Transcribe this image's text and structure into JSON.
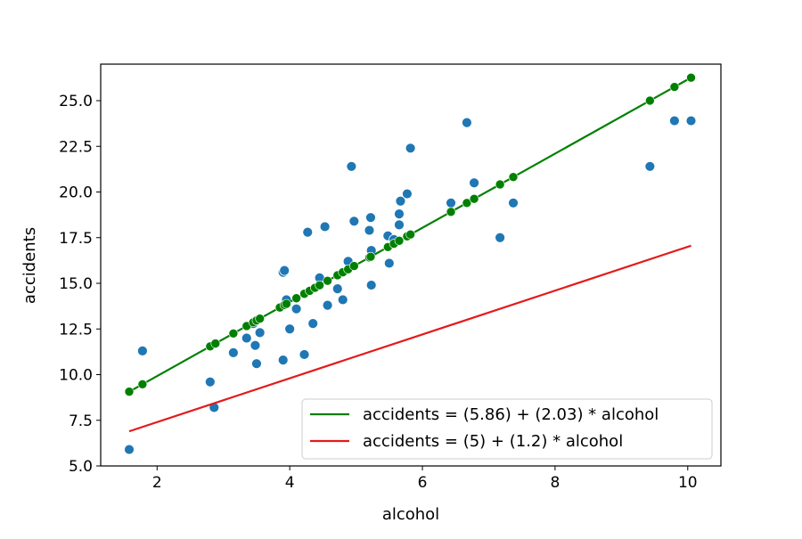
{
  "chart_data": {
    "type": "scatter",
    "title": "",
    "xlabel": "alcohol",
    "ylabel": "accidents",
    "xlim": [
      1.15,
      10.5
    ],
    "ylim": [
      5.0,
      27.0
    ],
    "x_ticks": [
      2,
      4,
      6,
      8,
      10
    ],
    "x_tick_labels": [
      "2",
      "4",
      "6",
      "8",
      "10"
    ],
    "y_ticks": [
      5.0,
      7.5,
      10.0,
      12.5,
      15.0,
      17.5,
      20.0,
      22.5,
      25.0
    ],
    "y_tick_labels": [
      "5.0",
      "7.5",
      "10.0",
      "12.5",
      "15.0",
      "17.5",
      "20.0",
      "22.5",
      "25.0"
    ],
    "grid": false,
    "legend_position": "lower right",
    "colors": {
      "observed": "#1f77b4",
      "fitted": "#008000",
      "guess": "#e31a1c",
      "axes": "#000000"
    },
    "series": [
      {
        "kind": "scatter",
        "color": "#1f77b4",
        "points": [
          [
            1.58,
            5.9
          ],
          [
            1.78,
            11.3
          ],
          [
            2.8,
            9.6
          ],
          [
            2.86,
            8.2
          ],
          [
            2.88,
            11.7
          ],
          [
            3.15,
            11.2
          ],
          [
            3.35,
            12.0
          ],
          [
            3.45,
            12.8
          ],
          [
            3.48,
            11.6
          ],
          [
            3.5,
            10.6
          ],
          [
            3.55,
            12.3
          ],
          [
            3.9,
            15.6
          ],
          [
            3.92,
            15.7
          ],
          [
            3.9,
            10.8
          ],
          [
            3.95,
            14.1
          ],
          [
            4.0,
            12.5
          ],
          [
            4.1,
            13.6
          ],
          [
            4.22,
            11.1
          ],
          [
            4.27,
            17.8
          ],
          [
            4.35,
            12.8
          ],
          [
            4.45,
            15.3
          ],
          [
            4.53,
            18.1
          ],
          [
            4.57,
            13.8
          ],
          [
            4.72,
            14.7
          ],
          [
            4.8,
            14.1
          ],
          [
            4.88,
            16.2
          ],
          [
            4.93,
            21.4
          ],
          [
            4.97,
            18.4
          ],
          [
            5.2,
            17.9
          ],
          [
            5.22,
            18.6
          ],
          [
            5.23,
            16.8
          ],
          [
            5.23,
            14.9
          ],
          [
            5.48,
            17.6
          ],
          [
            5.5,
            16.1
          ],
          [
            5.57,
            17.4
          ],
          [
            5.65,
            18.8
          ],
          [
            5.65,
            18.2
          ],
          [
            5.67,
            19.5
          ],
          [
            5.77,
            19.9
          ],
          [
            5.82,
            22.4
          ],
          [
            6.43,
            19.4
          ],
          [
            6.67,
            23.8
          ],
          [
            6.78,
            20.5
          ],
          [
            7.17,
            17.5
          ],
          [
            7.37,
            19.4
          ],
          [
            9.43,
            21.4
          ],
          [
            9.8,
            23.9
          ],
          [
            10.05,
            23.9
          ]
        ]
      },
      {
        "kind": "line-with-markers",
        "name": "accidents = (5.86) + (2.03) * alcohol",
        "color": "#008000",
        "intercept": 5.86,
        "slope": 2.03,
        "x": [
          1.58,
          1.78,
          2.8,
          2.88,
          3.15,
          3.35,
          3.45,
          3.5,
          3.55,
          3.85,
          3.92,
          3.95,
          4.1,
          4.22,
          4.3,
          4.38,
          4.45,
          4.57,
          4.72,
          4.8,
          4.88,
          4.97,
          5.2,
          5.22,
          5.48,
          5.57,
          5.65,
          5.77,
          5.82,
          6.43,
          6.67,
          6.78,
          7.17,
          7.37,
          9.43,
          9.8,
          10.05
        ]
      },
      {
        "kind": "line",
        "name": "accidents = (5) + (1.2) * alcohol",
        "color": "#e31a1c",
        "intercept": 5.0,
        "slope": 1.2,
        "x": [
          1.58,
          10.05
        ]
      }
    ],
    "legend": [
      {
        "label": "accidents = (5.86) + (2.03) * alcohol",
        "color": "#008000"
      },
      {
        "label": "accidents = (5) + (1.2) * alcohol",
        "color": "#e31a1c"
      }
    ]
  }
}
